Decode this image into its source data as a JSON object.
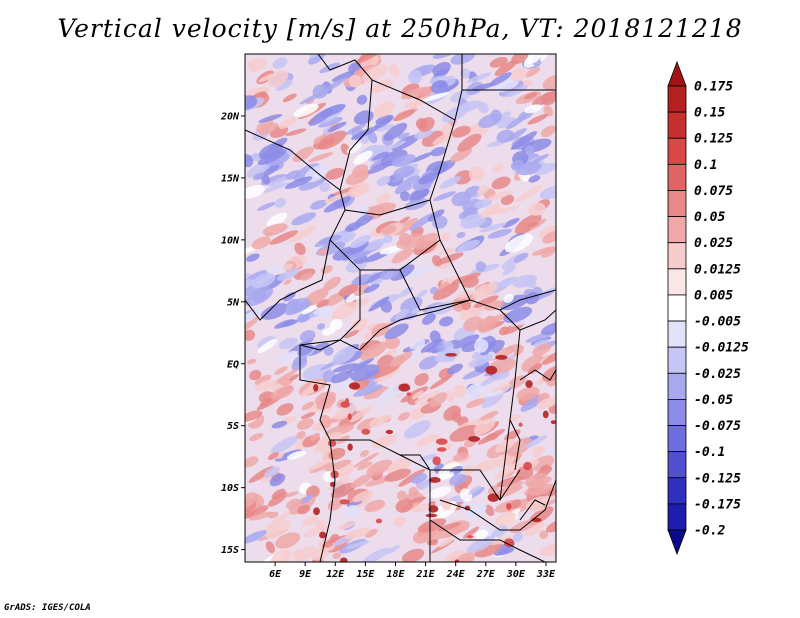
{
  "title": "Vertical velocity [m/s] at 250hPa, VT: 2018121218",
  "credit": "GrADS: IGES/COLA",
  "map": {
    "lon_range": [
      3,
      34
    ],
    "lat_range": [
      -16,
      25
    ],
    "lon_ticks": [
      "6E",
      "9E",
      "12E",
      "15E",
      "18E",
      "21E",
      "24E",
      "27E",
      "30E",
      "33E"
    ],
    "lat_ticks": [
      "20N",
      "15N",
      "10N",
      "5N",
      "EQ",
      "5S",
      "10S",
      "15S"
    ]
  },
  "colorbar": {
    "levels": [
      "0.175",
      "0.15",
      "0.125",
      "0.1",
      "0.075",
      "0.05",
      "0.025",
      "0.0125",
      "0.005",
      "-0.005",
      "-0.0125",
      "-0.025",
      "-0.05",
      "-0.075",
      "-0.1",
      "-0.125",
      "-0.175",
      "-0.2"
    ],
    "colors": [
      "#a01414",
      "#b52020",
      "#c83030",
      "#d84848",
      "#e06666",
      "#e88888",
      "#f0a8a8",
      "#f7cccc",
      "#fbe6e6",
      "#ffffff",
      "#e2e2fb",
      "#c6c6f6",
      "#a8a8ee",
      "#8c8ce6",
      "#6e6ede",
      "#5050d0",
      "#3030bf",
      "#1c1cad",
      "#0a0a8c"
    ]
  }
}
